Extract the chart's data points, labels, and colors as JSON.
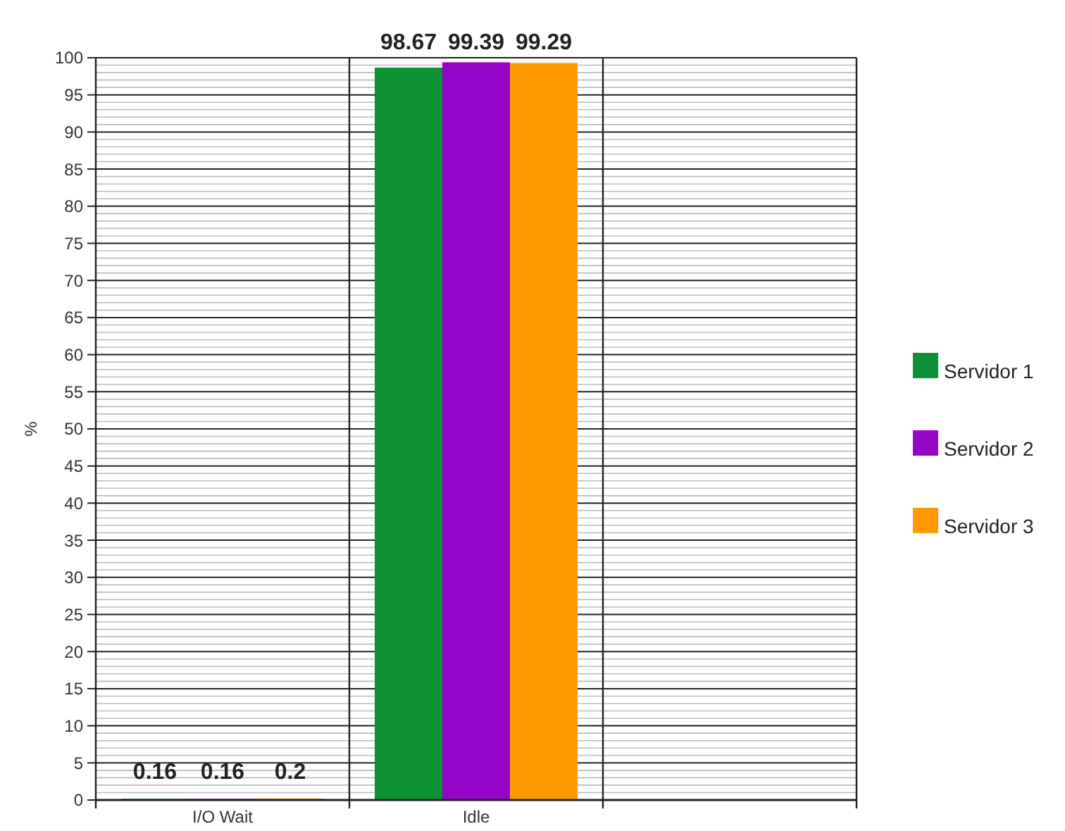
{
  "chart_data": {
    "type": "bar",
    "ylabel": "%",
    "categories": [
      "I/O Wait",
      "Idle",
      null
    ],
    "series": [
      {
        "name": "Servidor 1",
        "color": "#0f9135",
        "values": [
          0.16,
          98.67,
          null
        ]
      },
      {
        "name": "Servidor 2",
        "color": "#9405c8",
        "values": [
          0.16,
          99.39,
          null
        ]
      },
      {
        "name": "Servidor 3",
        "color": "#ff9900",
        "values": [
          0.2,
          99.29,
          null
        ]
      }
    ],
    "ylim": [
      0,
      100
    ],
    "yticks": [
      0,
      5,
      10,
      15,
      20,
      25,
      30,
      35,
      40,
      45,
      50,
      55,
      60,
      65,
      70,
      75,
      80,
      85,
      90,
      95,
      100
    ],
    "grid": "y",
    "data_labels": true,
    "legend": "right"
  }
}
